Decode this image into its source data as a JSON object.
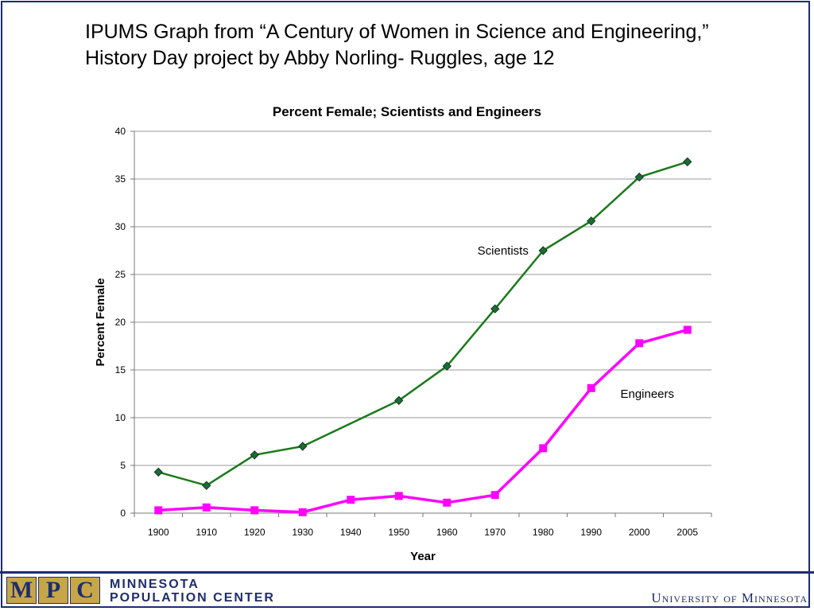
{
  "slide": {
    "title_line1": "IPUMS Graph from “A Century of Women in Science and Engineering,”",
    "title_line2": "History Day project by Abby Norling- Ruggles, age 12"
  },
  "footer": {
    "mpc_letters": [
      "M",
      "P",
      "C"
    ],
    "mpc_line1": "Minnesota",
    "mpc_line2": "Population Center",
    "university": "University of Minnesota"
  },
  "colors": {
    "frame": "#1f2d6b",
    "scientists": "#1a7a1a",
    "scientists_marker": "#1e6b3a",
    "engineers": "#ff00ff",
    "grid": "#9a9a9a"
  },
  "chart_data": {
    "type": "line",
    "title": "Percent Female; Scientists and Engineers",
    "xlabel": "Year",
    "ylabel": "Percent Female",
    "categories": [
      "1900",
      "1910",
      "1920",
      "1930",
      "1940",
      "1950",
      "1960",
      "1970",
      "1980",
      "1990",
      "2000",
      "2005"
    ],
    "ylim": [
      0,
      40
    ],
    "yticks": [
      0,
      5,
      10,
      15,
      20,
      25,
      30,
      35,
      40
    ],
    "grid": true,
    "legend": "none",
    "series": [
      {
        "name": "Scientists",
        "marker": "diamond",
        "values": [
          4.3,
          2.9,
          6.1,
          7.0,
          null,
          11.8,
          15.4,
          21.4,
          27.5,
          30.6,
          35.2,
          36.8
        ]
      },
      {
        "name": "Engineers",
        "marker": "square",
        "values": [
          0.3,
          0.6,
          0.3,
          0.1,
          1.4,
          1.8,
          1.1,
          1.9,
          6.8,
          13.1,
          17.8,
          19.2
        ]
      }
    ]
  }
}
